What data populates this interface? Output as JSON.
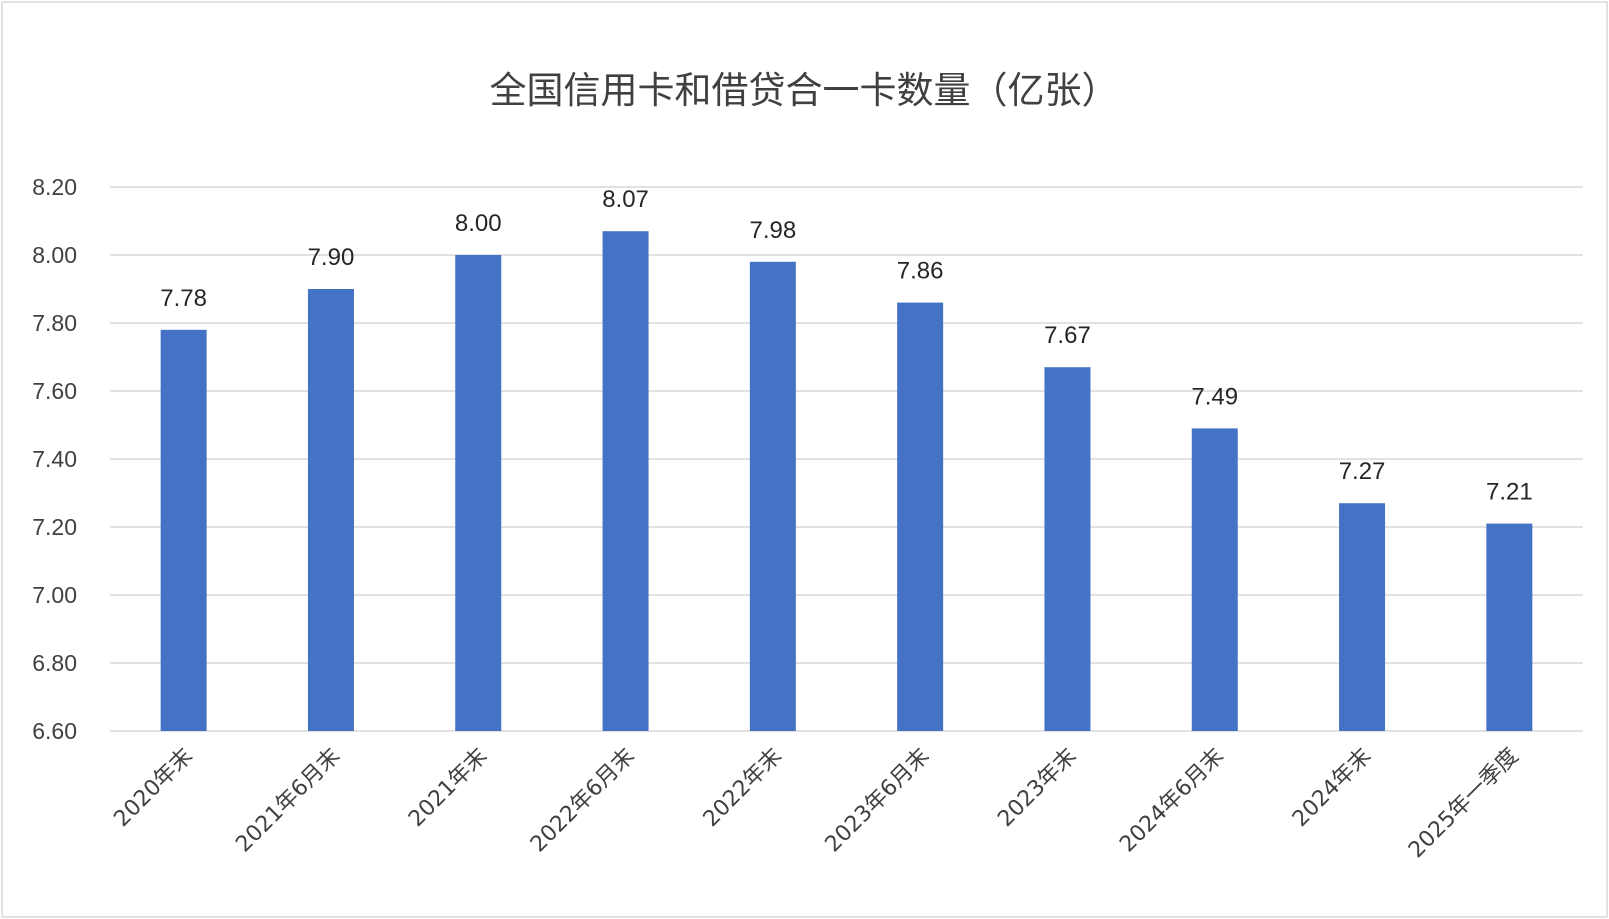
{
  "chart_data": {
    "type": "bar",
    "title": "全国信用卡和借贷合一卡数量（亿张）",
    "categories": [
      "2020年末",
      "2021年6月末",
      "2021年末",
      "2022年6月末",
      "2022年末",
      "2023年6月末",
      "2023年末",
      "2024年6月末",
      "2024年末",
      "2025年一季度"
    ],
    "values": [
      7.78,
      7.9,
      8.0,
      8.07,
      7.98,
      7.86,
      7.67,
      7.49,
      7.27,
      7.21
    ],
    "data_labels": [
      "7.78",
      "7.90",
      "8.00",
      "8.07",
      "7.98",
      "7.86",
      "7.67",
      "7.49",
      "7.27",
      "7.21"
    ],
    "ylim": [
      6.6,
      8.2
    ],
    "y_ticks": [
      "6.60",
      "6.80",
      "7.00",
      "7.20",
      "7.40",
      "7.60",
      "7.80",
      "8.00",
      "8.20"
    ],
    "xlabel": "",
    "ylabel": "",
    "grid": true,
    "legend": "none",
    "bar_color": "#4472c4"
  }
}
